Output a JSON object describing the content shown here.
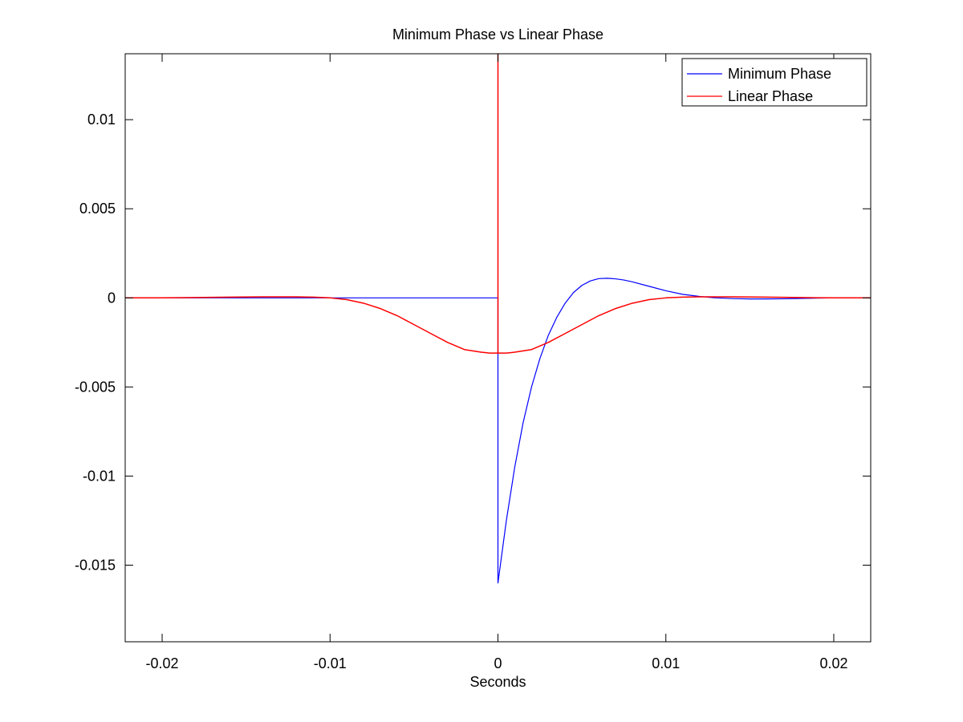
{
  "chart_data": {
    "type": "line",
    "title": "Minimum Phase vs Linear Phase",
    "xlabel": "Seconds",
    "ylabel": "",
    "xlim": [
      -0.0222,
      0.0222
    ],
    "ylim": [
      -0.0193,
      0.0137
    ],
    "xticks": [
      -0.02,
      -0.01,
      0,
      0.01,
      0.02
    ],
    "xtick_labels": [
      "-0.02",
      "-0.01",
      "0",
      "0.01",
      "0.02"
    ],
    "yticks": [
      0.01,
      0.005,
      0,
      -0.005,
      -0.01,
      -0.015
    ],
    "ytick_labels": [
      "0.01",
      "0.005",
      "0",
      "-0.005",
      "-0.01",
      "-0.015"
    ],
    "grid": false,
    "legend_position": "top-right",
    "series": [
      {
        "name": "Minimum Phase",
        "color": "#0000ff",
        "x": [
          -0.0222,
          -0.015,
          -0.01,
          -0.005,
          -0.0001,
          0.0,
          0.0,
          0.0005,
          0.001,
          0.0015,
          0.002,
          0.0025,
          0.003,
          0.0035,
          0.004,
          0.0045,
          0.005,
          0.0055,
          0.006,
          0.0065,
          0.007,
          0.0075,
          0.008,
          0.009,
          0.01,
          0.011,
          0.012,
          0.013,
          0.014,
          0.015,
          0.016,
          0.017,
          0.018,
          0.02,
          0.0222
        ],
        "y": [
          0.0,
          0.0,
          0.0,
          0.0,
          0.0,
          0.0,
          -0.016,
          -0.0125,
          -0.0095,
          -0.007,
          -0.005,
          -0.0034,
          -0.0021,
          -0.0011,
          -0.0003,
          0.0003,
          0.0007,
          0.00095,
          0.00108,
          0.0011,
          0.00107,
          0.001,
          0.0009,
          0.00065,
          0.0004,
          0.0002,
          8e-05,
          0.0,
          -4e-05,
          -6e-05,
          -6e-05,
          -5e-05,
          -3e-05,
          0.0,
          0.0
        ]
      },
      {
        "name": "Linear Phase",
        "color": "#ff0000",
        "x": [
          -0.0222,
          -0.02,
          -0.018,
          -0.016,
          -0.014,
          -0.012,
          -0.011,
          -0.01,
          -0.009,
          -0.008,
          -0.007,
          -0.006,
          -0.005,
          -0.004,
          -0.003,
          -0.002,
          -0.001,
          -0.0005,
          -0.0001,
          0.0,
          0.0,
          0.0,
          0.0001,
          0.0005,
          0.001,
          0.002,
          0.003,
          0.004,
          0.005,
          0.006,
          0.007,
          0.008,
          0.009,
          0.01,
          0.011,
          0.012,
          0.014,
          0.016,
          0.018,
          0.02,
          0.0222
        ],
        "y": [
          0.0,
          0.0,
          2e-05,
          4e-05,
          6e-05,
          6e-05,
          4e-05,
          0.0,
          -0.0001,
          -0.0003,
          -0.0006,
          -0.001,
          -0.0015,
          -0.002,
          -0.0025,
          -0.0029,
          -0.00305,
          -0.0031,
          -0.0031,
          -0.0031,
          0.0137,
          -0.0031,
          -0.0031,
          -0.0031,
          -0.00305,
          -0.0029,
          -0.0025,
          -0.002,
          -0.0015,
          -0.001,
          -0.0006,
          -0.0003,
          -0.0001,
          0.0,
          4e-05,
          6e-05,
          6e-05,
          4e-05,
          2e-05,
          0.0,
          0.0
        ]
      }
    ]
  }
}
